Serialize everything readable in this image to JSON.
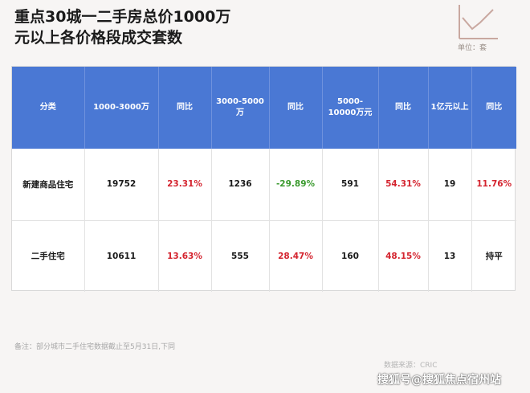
{
  "header": {
    "title_line1": "重点30城一二手房总价1000万",
    "title_line2": "元以上各价格段成交套数",
    "unit": "单位：套"
  },
  "table": {
    "headers": [
      "分类",
      "1000-3000万",
      "同比",
      "3000-5000万",
      "同比",
      "5000-\n10000万元",
      "同比",
      "1亿元以上",
      "同比"
    ],
    "rows": [
      {
        "category": "新建商品住宅",
        "c1": "19752",
        "c1_yoy": "23.31%",
        "c2": "1236",
        "c2_yoy": "-29.89%",
        "c3": "591",
        "c3_yoy": "54.31%",
        "c4": "19",
        "c4_yoy": "11.76%"
      },
      {
        "category": "二手住宅",
        "c1": "10611",
        "c1_yoy": "13.63%",
        "c2": "555",
        "c2_yoy": "28.47%",
        "c3": "160",
        "c3_yoy": "48.15%",
        "c4": "13",
        "c4_yoy": "持平"
      }
    ]
  },
  "footer": {
    "note": "备注：部分城市二手住宅数据截止至5月31日,下同",
    "source": "数据来源：CRIC",
    "watermark": "搜狐号@搜狐焦点宿州站"
  },
  "colors": {
    "header_bg": "#4a78d4",
    "positive": "#d4242f",
    "negative": "#3a9a2e"
  },
  "icons": [
    "line-chart-icon"
  ]
}
